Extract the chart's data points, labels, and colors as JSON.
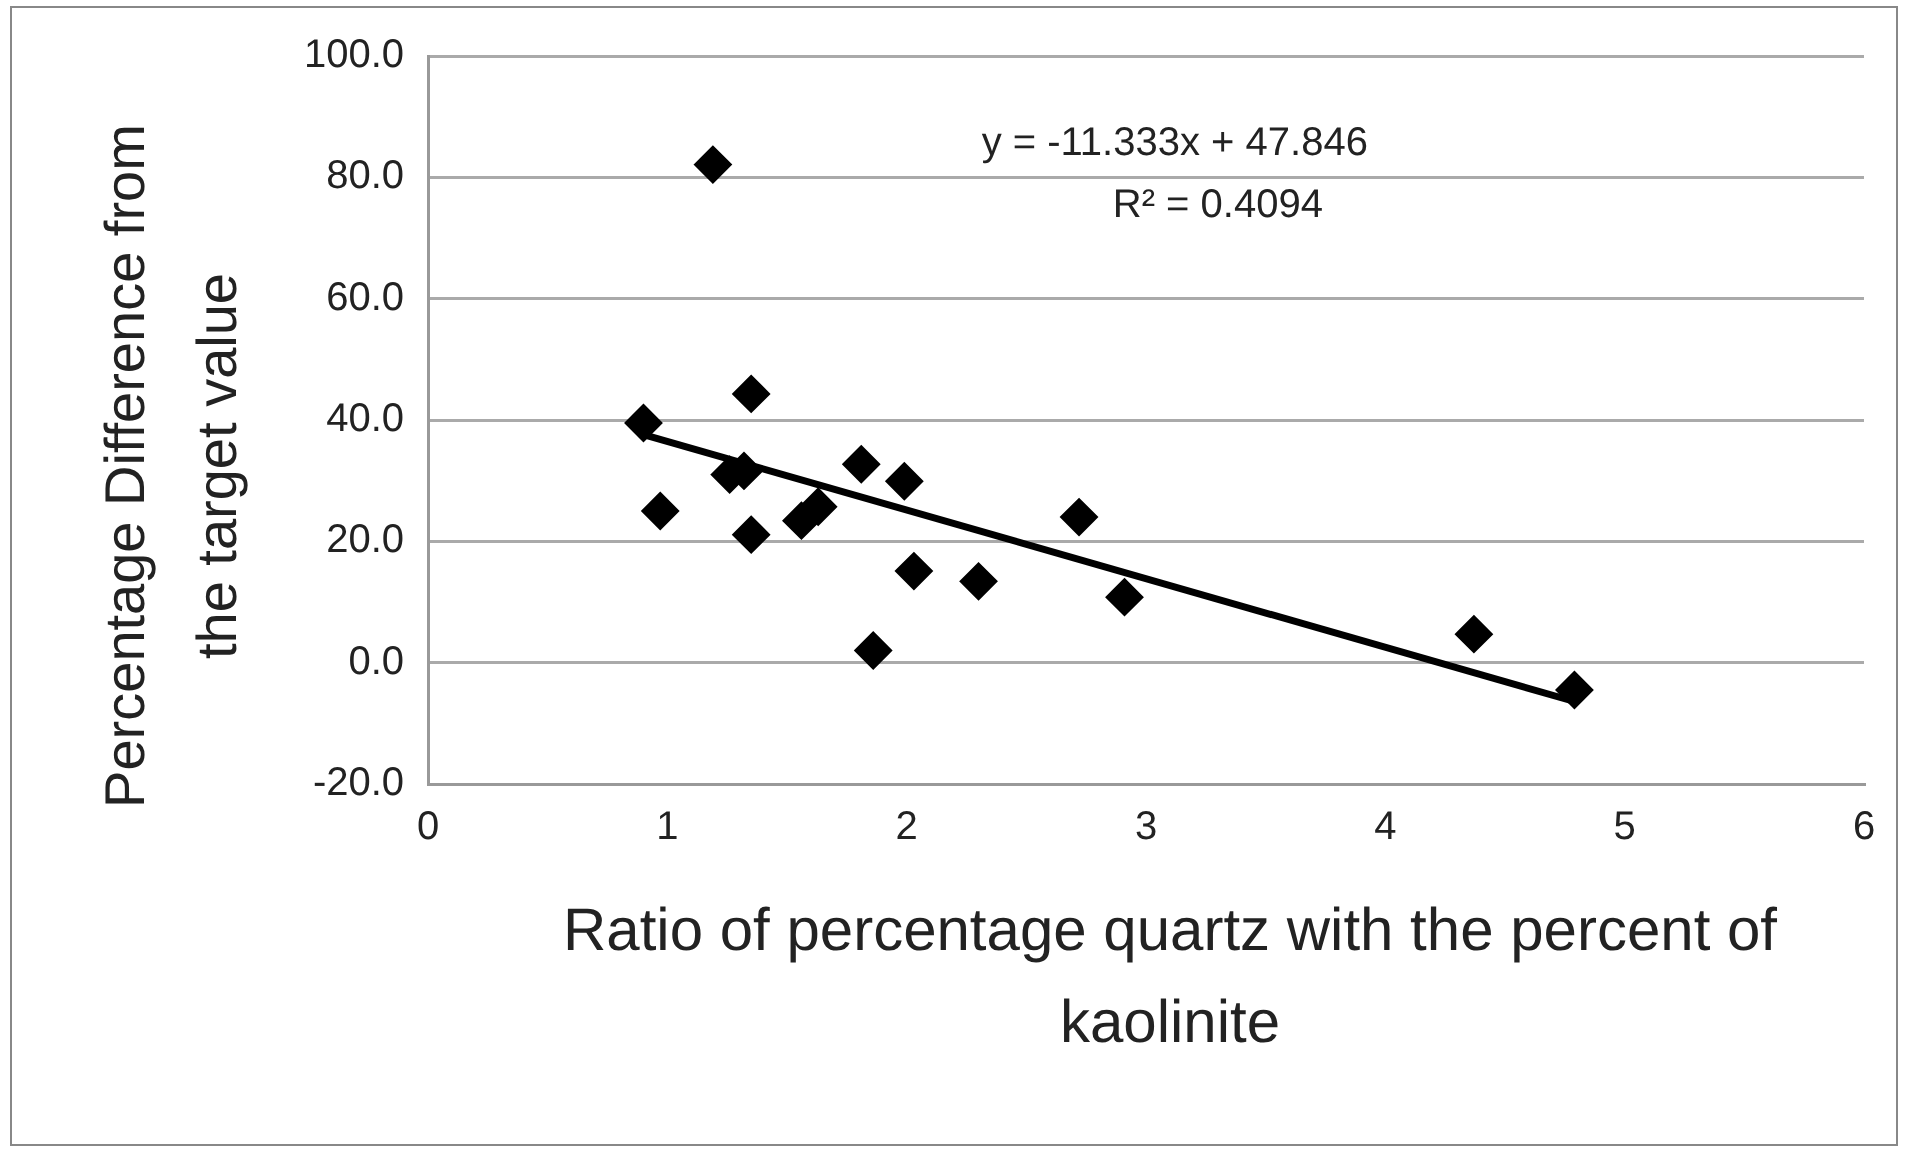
{
  "chart_data": {
    "type": "scatter",
    "xlabel": "Ratio of percentage quartz with the percent of kaolinite",
    "ylabel": "Percentage Difference from the target value",
    "series": [
      {
        "color": "#000000",
        "marker": "diamond",
        "x": [
          1.19,
          0.9,
          0.97,
          1.35,
          1.26,
          1.32,
          1.35,
          1.56,
          1.63,
          1.81,
          1.86,
          1.99,
          2.03,
          2.3,
          2.72,
          2.91,
          4.37,
          4.79
        ],
        "values": [
          82.1,
          39.5,
          25.0,
          44.3,
          31.0,
          31.6,
          21.1,
          23.4,
          25.7,
          32.7,
          2.0,
          29.9,
          15.1,
          13.4,
          24.0,
          10.8,
          4.7,
          -4.5
        ]
      },
      {
        "type": "line",
        "color": "#000000",
        "marker": "none",
        "line_style": "solid",
        "x": [
          0.9,
          4.79
        ],
        "values": [
          37.6,
          -6.4
        ]
      }
    ],
    "annotations": [
      "y = -11.333x + 47.846",
      "R² = 0.4094"
    ],
    "xlim": [
      0,
      6
    ],
    "xticks": [
      0,
      1,
      2,
      3,
      4,
      5,
      6
    ],
    "ylim": [
      -20,
      100
    ],
    "yticks": [
      {
        "value": -20,
        "label": "-20.0"
      },
      {
        "value": 0,
        "label": "0.0"
      },
      {
        "value": 20,
        "label": "20.0"
      },
      {
        "value": 40,
        "label": "40.0"
      },
      {
        "value": 60,
        "label": "60.0"
      },
      {
        "value": 80,
        "label": "80.0"
      },
      {
        "value": 100,
        "label": "100.0"
      }
    ],
    "grid": "y",
    "legend": false
  }
}
